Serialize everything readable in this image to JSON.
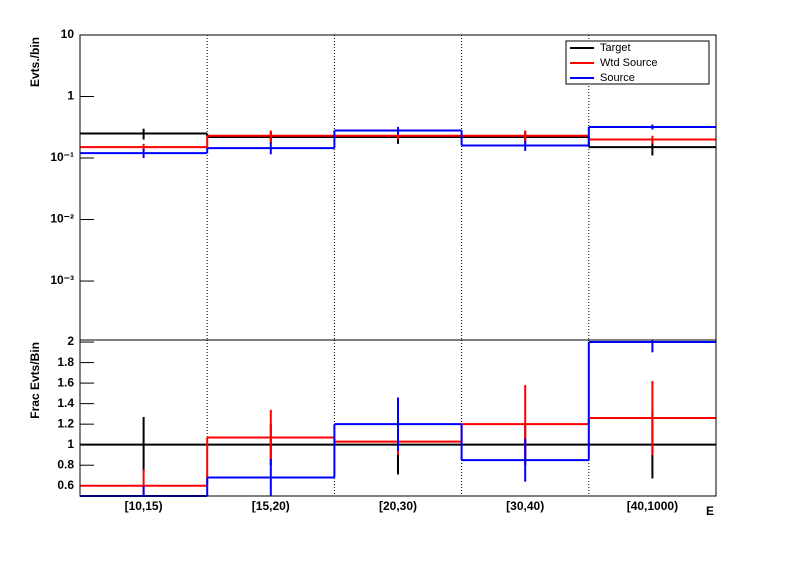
{
  "chart_data": [
    {
      "type": "step",
      "log_y": true,
      "ylabel": "Evts./bin",
      "ylim": [
        0.00011,
        10
      ],
      "yticks": [
        10,
        1,
        {
          "value": 0.1,
          "label": "10⁻¹"
        },
        {
          "value": 0.01,
          "label": "10⁻²"
        },
        {
          "value": 0.001,
          "label": "10⁻³"
        }
      ],
      "grid_x": true,
      "legend": "top-right",
      "series": [
        {
          "name": "Target",
          "color": "#000000",
          "values": [
            0.25,
            0.22,
            0.22,
            0.22,
            0.15
          ],
          "errors": [
            0.05,
            0.05,
            0.05,
            0.05,
            0.04
          ]
        },
        {
          "name": "Wtd Source",
          "color": "#ff0000",
          "values": [
            0.15,
            0.23,
            0.23,
            0.23,
            0.2
          ],
          "errors": [
            0.02,
            0.05,
            0.03,
            0.05,
            0.03
          ]
        },
        {
          "name": "Source",
          "color": "#0000ff",
          "values": [
            0.12,
            0.145,
            0.28,
            0.16,
            0.32
          ],
          "errors": [
            0.02,
            0.03,
            0.04,
            0.03,
            0.03
          ]
        }
      ]
    },
    {
      "type": "step",
      "log_y": false,
      "ylabel": "Frac Evts/Bin",
      "xlabel": "E",
      "categories": [
        "[10,15)",
        "[15,20)",
        "[20,30)",
        "[30,40)",
        "[40,1000)"
      ],
      "ylim": [
        0.5,
        2.02
      ],
      "yticks": [
        0.6,
        0.8,
        1,
        1.2,
        1.4,
        1.6,
        1.8,
        2
      ],
      "grid_x": true,
      "series": [
        {
          "name": "Target",
          "color": "#000000",
          "values": [
            1,
            1,
            1,
            1,
            1
          ],
          "errors": [
            0.27,
            0.2,
            0.29,
            0.2,
            0.33
          ]
        },
        {
          "name": "Wtd Source",
          "color": "#ff0000",
          "values": [
            0.6,
            1.07,
            1.03,
            1.2,
            1.26
          ],
          "errors": [
            0.16,
            0.27,
            0.13,
            0.38,
            0.36
          ]
        },
        {
          "name": "Source",
          "color": "#0000ff",
          "values": [
            0.5,
            0.68,
            1.2,
            0.85,
            2.0
          ],
          "errors": [
            0.1,
            0.18,
            0.26,
            0.21,
            0.1
          ]
        }
      ]
    }
  ]
}
